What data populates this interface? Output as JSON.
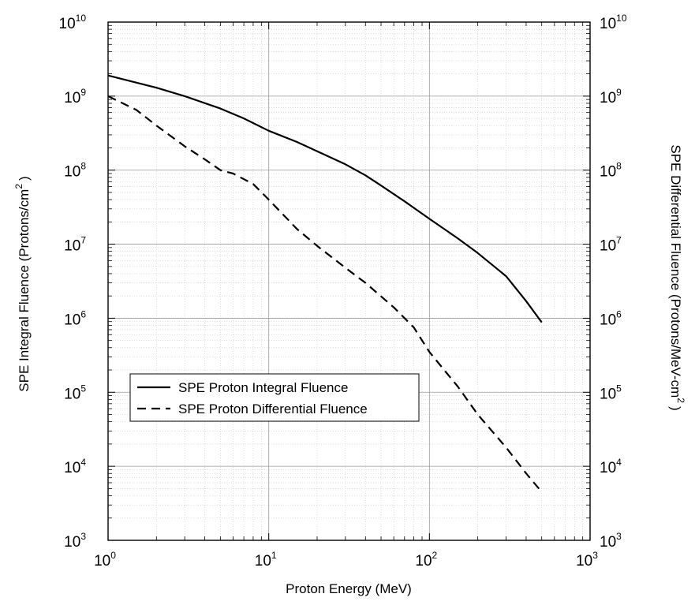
{
  "chart_data": {
    "type": "line",
    "xlabel": "Proton Energy (MeV)",
    "ylabel_left": "SPE Integral Fluence (Protons/cm",
    "ylabel_left_exp": "2",
    "ylabel_left_close": ")",
    "ylabel_right": "SPE Differential Fluence (Protons/MeV-cm",
    "ylabel_right_exp": "2",
    "ylabel_right_close": ")",
    "x_scale": "log",
    "y_scale": "log",
    "xlim": [
      1,
      1000
    ],
    "ylim": [
      1000,
      10000000000
    ],
    "grid": true,
    "legend_position": "lower-left",
    "x_ticks": [
      {
        "base": "10",
        "exp": "0",
        "value": 1
      },
      {
        "base": "10",
        "exp": "1",
        "value": 10
      },
      {
        "base": "10",
        "exp": "2",
        "value": 100
      },
      {
        "base": "10",
        "exp": "3",
        "value": 1000
      }
    ],
    "y_ticks": [
      {
        "base": "10",
        "exp": "3",
        "value": 1000
      },
      {
        "base": "10",
        "exp": "4",
        "value": 10000
      },
      {
        "base": "10",
        "exp": "5",
        "value": 100000
      },
      {
        "base": "10",
        "exp": "6",
        "value": 1000000
      },
      {
        "base": "10",
        "exp": "7",
        "value": 10000000
      },
      {
        "base": "10",
        "exp": "8",
        "value": 100000000
      },
      {
        "base": "10",
        "exp": "9",
        "value": 1000000000
      },
      {
        "base": "10",
        "exp": "10",
        "value": 10000000000
      }
    ],
    "series": [
      {
        "name": "SPE Proton Integral Fluence",
        "style": "solid",
        "color": "#000000",
        "x": [
          1,
          2,
          3,
          5,
          7,
          10,
          15,
          20,
          30,
          40,
          50,
          70,
          100,
          150,
          200,
          300,
          400,
          500
        ],
        "y": [
          1900000000,
          1300000000,
          1000000000,
          680000000,
          500000000,
          340000000,
          240000000,
          180000000,
          120000000,
          85000000,
          62000000,
          38000000,
          22000000,
          12000000,
          7600000,
          3700000,
          1700000,
          880000
        ]
      },
      {
        "name": "SPE Proton Differential Fluence",
        "style": "dashed",
        "color": "#000000",
        "x": [
          1,
          1.5,
          2,
          3,
          4,
          5,
          6,
          8,
          10,
          15,
          20,
          30,
          40,
          60,
          80,
          100,
          150,
          200,
          300,
          400,
          500
        ],
        "y": [
          1000000000,
          650000000,
          400000000,
          210000000,
          140000000,
          100000000,
          90000000,
          65000000,
          40000000,
          16000000,
          9500000,
          4800000,
          3000000,
          1400000,
          750000,
          350000,
          120000,
          50000,
          18000,
          8000,
          4500
        ]
      }
    ]
  }
}
